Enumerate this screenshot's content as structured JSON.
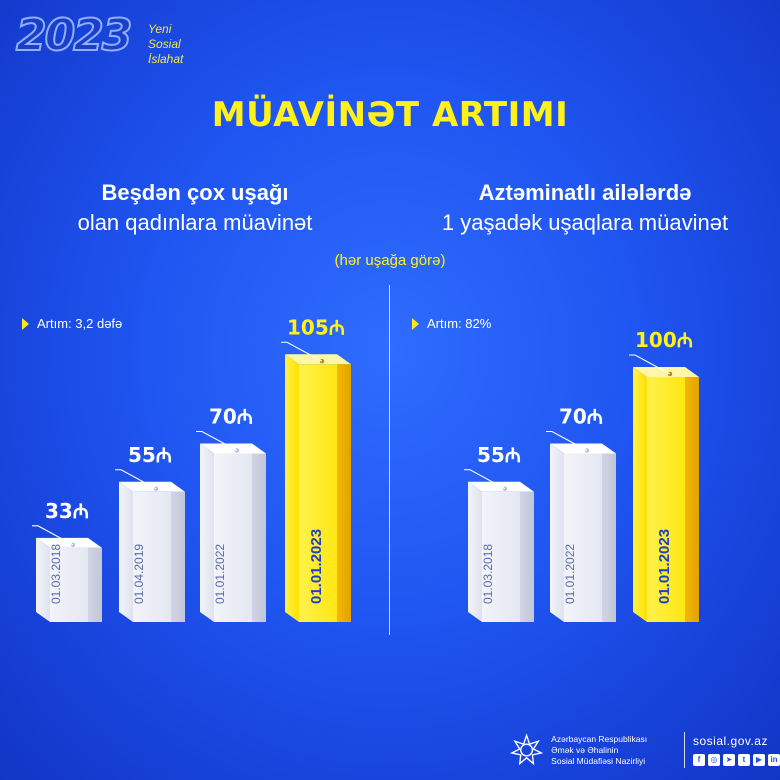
{
  "logo": {
    "year": "2023",
    "line1": "Yeni",
    "line2": "Sosial",
    "line3": "İslahat"
  },
  "title": "MÜAVİNƏT ARTIMI",
  "left": {
    "subtitle_line1": "Beşdən çox uşağı",
    "subtitle_line2": "olan qadınlara müavinət",
    "growth": "Artım: 3,2 dəfə"
  },
  "right": {
    "subtitle_line1": "Aztəminatlı ailələrdə",
    "subtitle_line2": "1 yaşadək uşaqlara müavinət",
    "growth": "Artım: 82%"
  },
  "per_child": "(hər uşağa görə)",
  "chart_data": [
    {
      "type": "bar",
      "categories": [
        "01.03.2018",
        "01.04.2019",
        "01.01.2022",
        "01.01.2023"
      ],
      "values": [
        33,
        55,
        70,
        105
      ],
      "value_labels": [
        "33₼",
        "55₼",
        "70₼",
        "105₼"
      ],
      "highlight_index": 3,
      "bar_color": "#eef0f8",
      "highlight_color": "#ffe800"
    },
    {
      "type": "bar",
      "categories": [
        "01.03.2018",
        "01.01.2022",
        "01.01.2023"
      ],
      "values": [
        55,
        70,
        100
      ],
      "value_labels": [
        "55₼",
        "70₼",
        "100₼"
      ],
      "highlight_index": 2,
      "bar_color": "#eef0f8",
      "highlight_color": "#ffe800"
    }
  ],
  "footer": {
    "ministry_line1": "Azərbaycan Respublikası",
    "ministry_line2": "Əmək və Əhalinin",
    "ministry_line3": "Sosial Müdafiəsi Nazirliyi",
    "website": "sosial.gov.az",
    "social_icons": [
      "facebook-icon",
      "instagram-icon",
      "telegram-icon",
      "twitter-icon",
      "youtube-icon",
      "linkedin-icon"
    ]
  }
}
